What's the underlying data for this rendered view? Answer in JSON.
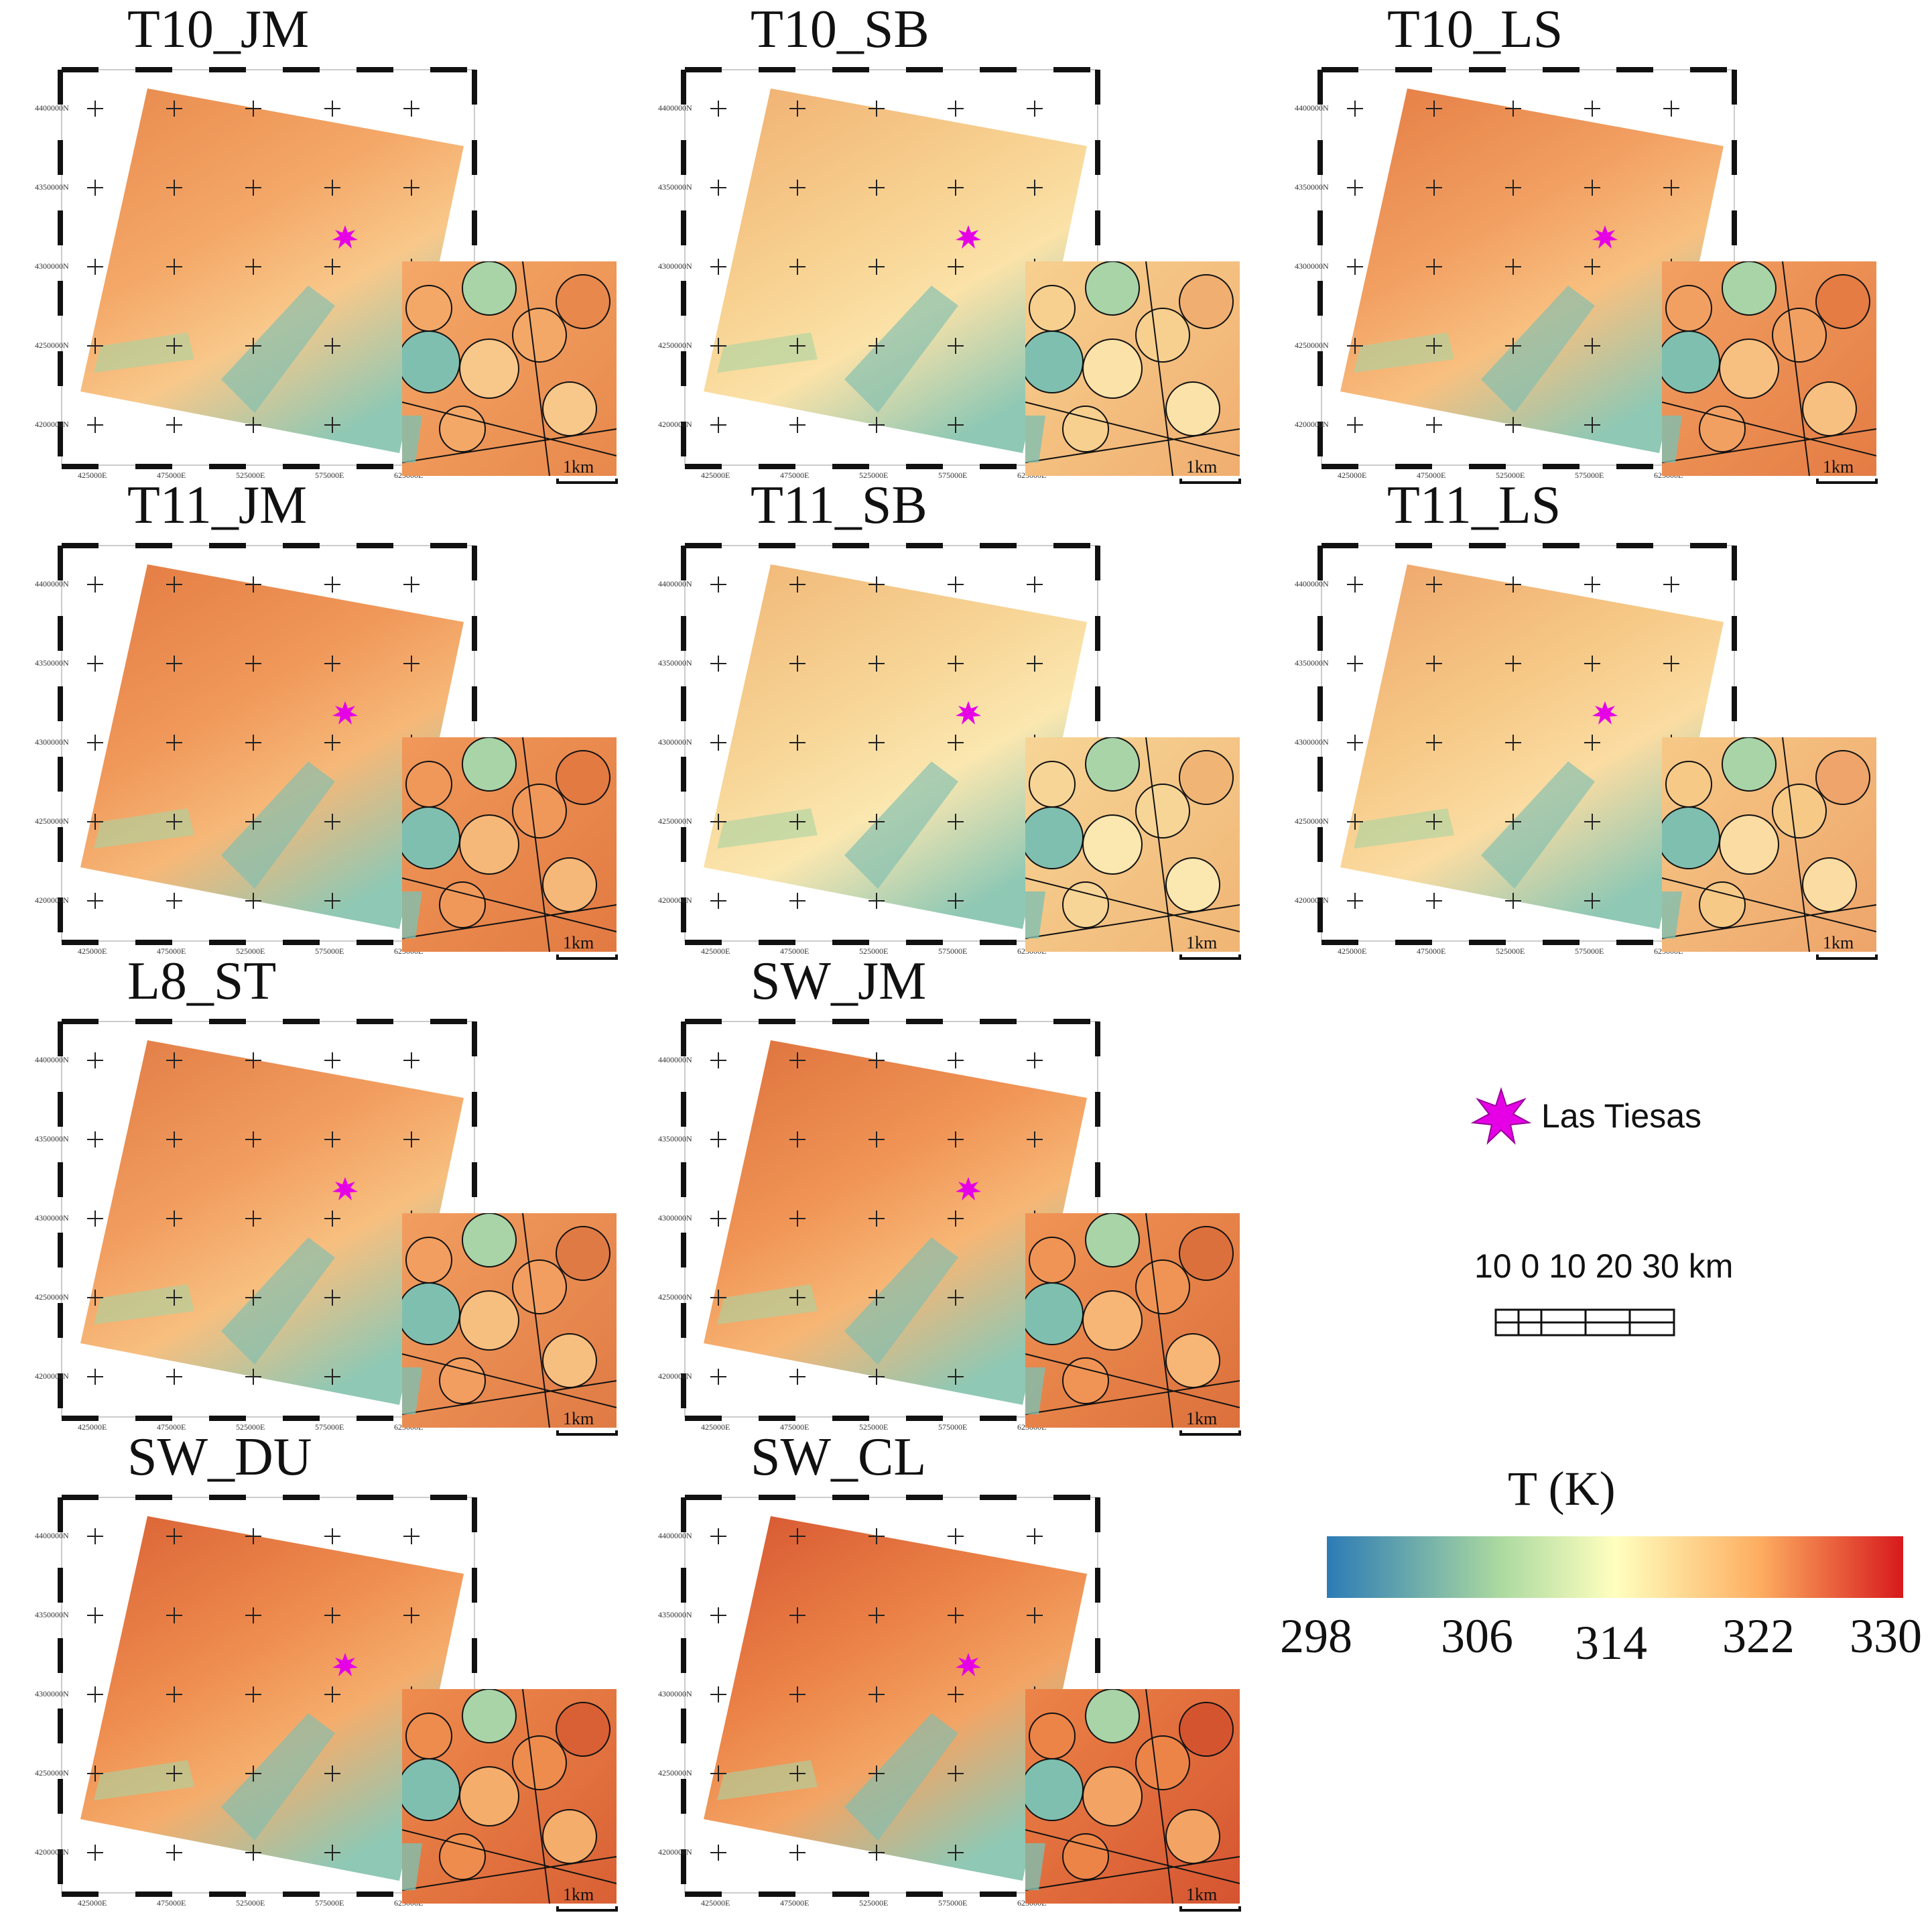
{
  "panels": [
    {
      "title": "T10_JM"
    },
    {
      "title": "T10_SB"
    },
    {
      "title": "T10_LS"
    },
    {
      "title": "T11_JM"
    },
    {
      "title": "T11_SB"
    },
    {
      "title": "T11_LS"
    },
    {
      "title": "L8_ST"
    },
    {
      "title": "SW_JM"
    },
    {
      "title": "SW_DU"
    },
    {
      "title": "SW_CL"
    }
  ],
  "axis": {
    "y_labels": [
      "4400000N",
      "4350000N",
      "4300000N",
      "4250000N",
      "4200000N"
    ],
    "x_labels": [
      "425000E",
      "475000E",
      "525000E",
      "575000E",
      "625000E"
    ]
  },
  "inset_scale": "1km",
  "legend": {
    "site_label": "Las Tiesas",
    "scale_text": "10  0  10 20 30 km",
    "colorbar_title": "T (K)",
    "colorbar_ticks": [
      "298",
      "306",
      "314",
      "322",
      "330"
    ],
    "colors": {
      "low": "#2c7bb6",
      "mid": "#ffffbf",
      "high": "#d7191c",
      "site": "#e600e6"
    }
  }
}
